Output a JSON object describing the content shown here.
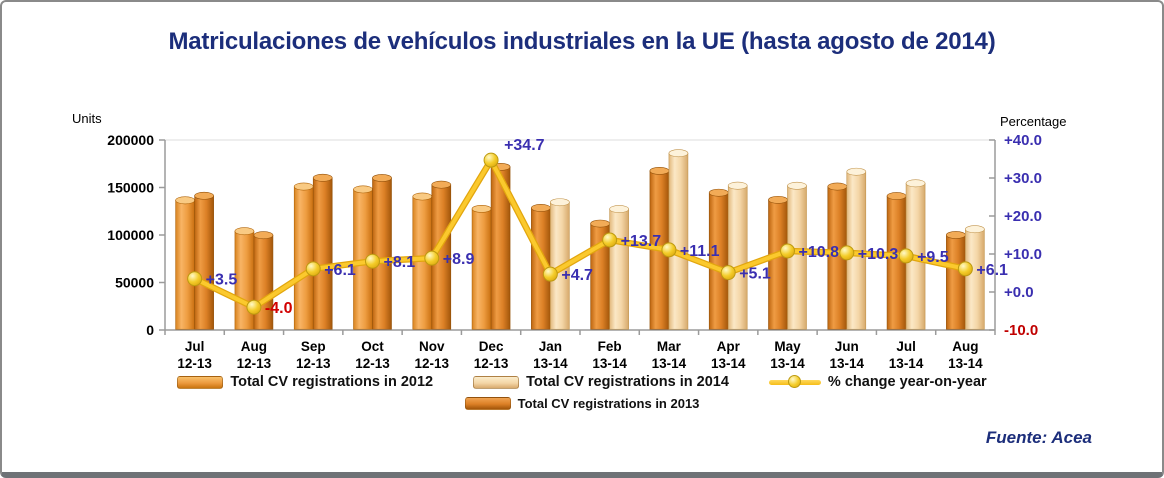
{
  "title": "Matriculaciones de vehículos industriales en la UE (hasta agosto de 2014)",
  "footer": {
    "source": "Fuente: Acea"
  },
  "chart_data": {
    "type": "bar",
    "subtype": "grouped-bars-with-line-overlay",
    "categories": [
      "Jul 12-13",
      "Aug 12-13",
      "Sep 12-13",
      "Oct 12-13",
      "Nov 12-13",
      "Dec 12-13",
      "Jan 13-14",
      "Feb 13-14",
      "Mar 13-14",
      "Apr 13-14",
      "May 13-14",
      "Jun 13-14",
      "Jul 13-14",
      "Aug 13-14"
    ],
    "bar_series": [
      {
        "name": "Total CV registrations in 2012",
        "color_key": "bar2012",
        "values": [
          136500,
          104000,
          151000,
          148000,
          140500,
          127500,
          null,
          null,
          null,
          null,
          null,
          null,
          null,
          null
        ]
      },
      {
        "name": "Total CV registrations in 2013",
        "color_key": "bar2013",
        "values": [
          141300,
          99800,
          160200,
          160000,
          153000,
          171700,
          128500,
          112000,
          167500,
          144500,
          137000,
          151000,
          141000,
          100000
        ]
      },
      {
        "name": "Total CV registrations in 2014",
        "color_key": "bar2014",
        "values": [
          null,
          null,
          null,
          null,
          null,
          null,
          134500,
          127300,
          186100,
          151900,
          151800,
          166600,
          154400,
          106100
        ]
      }
    ],
    "line_series": {
      "name": "% change year-on-year",
      "values": [
        3.5,
        -4.0,
        6.1,
        8.1,
        8.9,
        34.7,
        4.7,
        13.7,
        11.1,
        5.1,
        10.8,
        10.3,
        9.5,
        6.1
      ],
      "labels": [
        "+3.5",
        "-4.0",
        "+6.1",
        "+8.1",
        "+8.9",
        "+34.7",
        "+4.7",
        "+13.7",
        "+11.1",
        "+5.1",
        "+10.8",
        "+10.3",
        "+9.5",
        "+6.1"
      ]
    },
    "left_axis": {
      "title": "Units",
      "min": 0,
      "max": 200000,
      "ticks": [
        {
          "label": "200000",
          "value": 200000
        },
        {
          "label": "150000",
          "value": 150000
        },
        {
          "label": "100000",
          "value": 100000
        },
        {
          "label": "50000",
          "value": 50000
        },
        {
          "label": "0",
          "value": 0
        }
      ]
    },
    "right_axis": {
      "title": "Percentage",
      "min": -10,
      "max": 40,
      "ticks": [
        {
          "label": "+40.0",
          "value": 40
        },
        {
          "label": "+30.0",
          "value": 30
        },
        {
          "label": "+20.0",
          "value": 20
        },
        {
          "label": "+10.0",
          "value": 10
        },
        {
          "label": "+0.0",
          "value": 0
        },
        {
          "label": "-10.0",
          "value": -10
        }
      ]
    },
    "legend_position": "bottom",
    "grid": "minimal",
    "colors": {
      "title": "#1c2e7b",
      "axis": "#9b9b9b",
      "grid": "#dedede",
      "bar2012": {
        "body": [
          "#d8831f",
          "#f8b465",
          "#ee9d41",
          "#c96f10"
        ],
        "cap": "#f9ca83",
        "stroke": "#b06308"
      },
      "bar2013": {
        "body": [
          "#bd650f",
          "#ef9c44",
          "#dc8026",
          "#a2560a"
        ],
        "cap": "#f2ab57",
        "stroke": "#94520a"
      },
      "bar2014": {
        "body": [
          "#e2b87c",
          "#fbe8c6",
          "#f4d6a7",
          "#d6a96b"
        ],
        "cap": "#fdf2da",
        "stroke": "#c2954e"
      },
      "line": "#fbc92d",
      "line_edge": "#e2a60e",
      "marker_stroke": "#bd9a10",
      "label_positive": "#3a2fb0",
      "label_negative": "#d10000",
      "right_tick_negative": "#c00000",
      "tick_text": "#000000"
    }
  }
}
